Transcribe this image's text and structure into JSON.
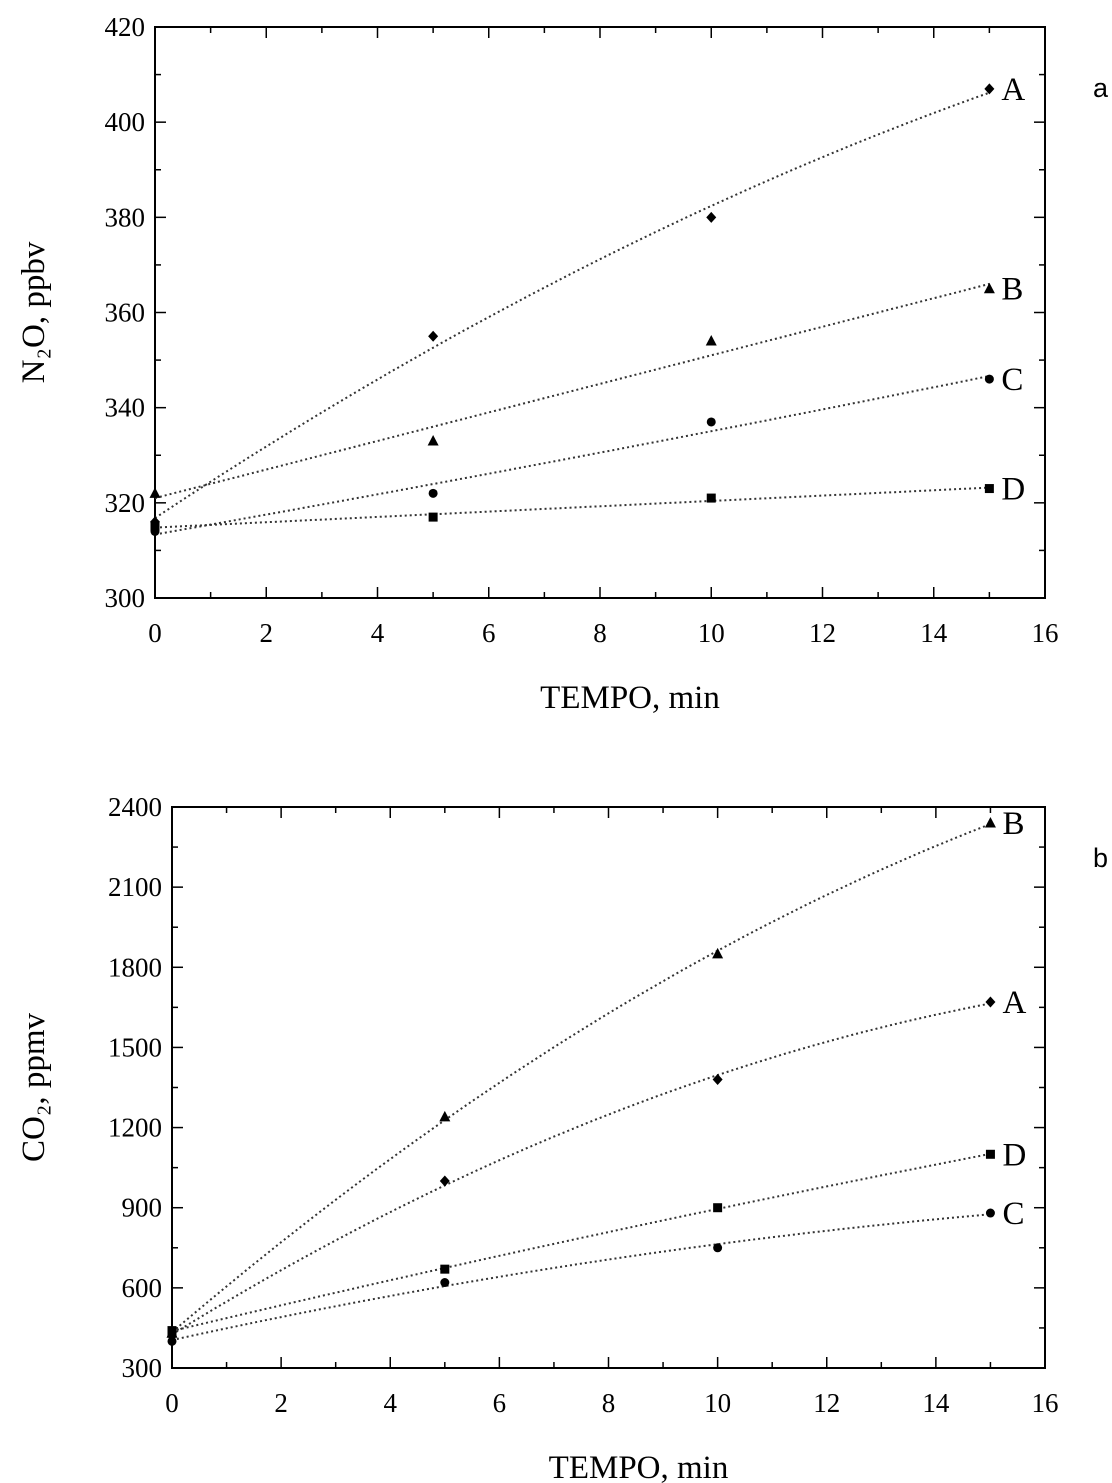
{
  "chart_data": [
    {
      "type": "scatter",
      "panel_letter": "a",
      "xlabel": "TEMPO, min",
      "ylabel": "N₂O, ppbv",
      "xlim": [
        0,
        16
      ],
      "ylim": [
        300,
        420
      ],
      "x_ticks": [
        0,
        2,
        4,
        6,
        8,
        10,
        12,
        14,
        16
      ],
      "y_ticks": [
        300,
        320,
        340,
        360,
        380,
        400,
        420
      ],
      "fit_lines": "dotted",
      "grid": false,
      "series": [
        {
          "name": "A",
          "marker": "diamond",
          "x": [
            0,
            5,
            10,
            15
          ],
          "y": [
            316,
            355,
            380,
            407
          ]
        },
        {
          "name": "B",
          "marker": "triangle",
          "x": [
            0,
            5,
            10,
            15
          ],
          "y": [
            322,
            333,
            354,
            365
          ]
        },
        {
          "name": "C",
          "marker": "circle",
          "x": [
            0,
            5,
            10,
            15
          ],
          "y": [
            314,
            322,
            337,
            346
          ]
        },
        {
          "name": "D",
          "marker": "square",
          "x": [
            0,
            5,
            10,
            15
          ],
          "y": [
            315,
            317,
            321,
            323
          ]
        }
      ]
    },
    {
      "type": "scatter",
      "panel_letter": "b",
      "xlabel": "TEMPO, min",
      "ylabel": "CO₂, ppmv",
      "xlim": [
        0,
        16
      ],
      "ylim": [
        300,
        2400
      ],
      "x_ticks": [
        0,
        2,
        4,
        6,
        8,
        10,
        12,
        14,
        16
      ],
      "y_ticks": [
        300,
        600,
        900,
        1200,
        1500,
        1800,
        2100,
        2400
      ],
      "fit_lines": "dotted",
      "grid": false,
      "series": [
        {
          "name": "B",
          "marker": "triangle",
          "x": [
            0,
            5,
            10,
            15
          ],
          "y": [
            430,
            1240,
            1850,
            2340
          ]
        },
        {
          "name": "A",
          "marker": "diamond",
          "x": [
            0,
            5,
            10,
            15
          ],
          "y": [
            420,
            1000,
            1380,
            1670
          ]
        },
        {
          "name": "D",
          "marker": "square",
          "x": [
            0,
            5,
            10,
            15
          ],
          "y": [
            440,
            670,
            900,
            1100
          ]
        },
        {
          "name": "C",
          "marker": "circle",
          "x": [
            0,
            5,
            10,
            15
          ],
          "y": [
            400,
            620,
            750,
            880
          ]
        }
      ]
    }
  ]
}
